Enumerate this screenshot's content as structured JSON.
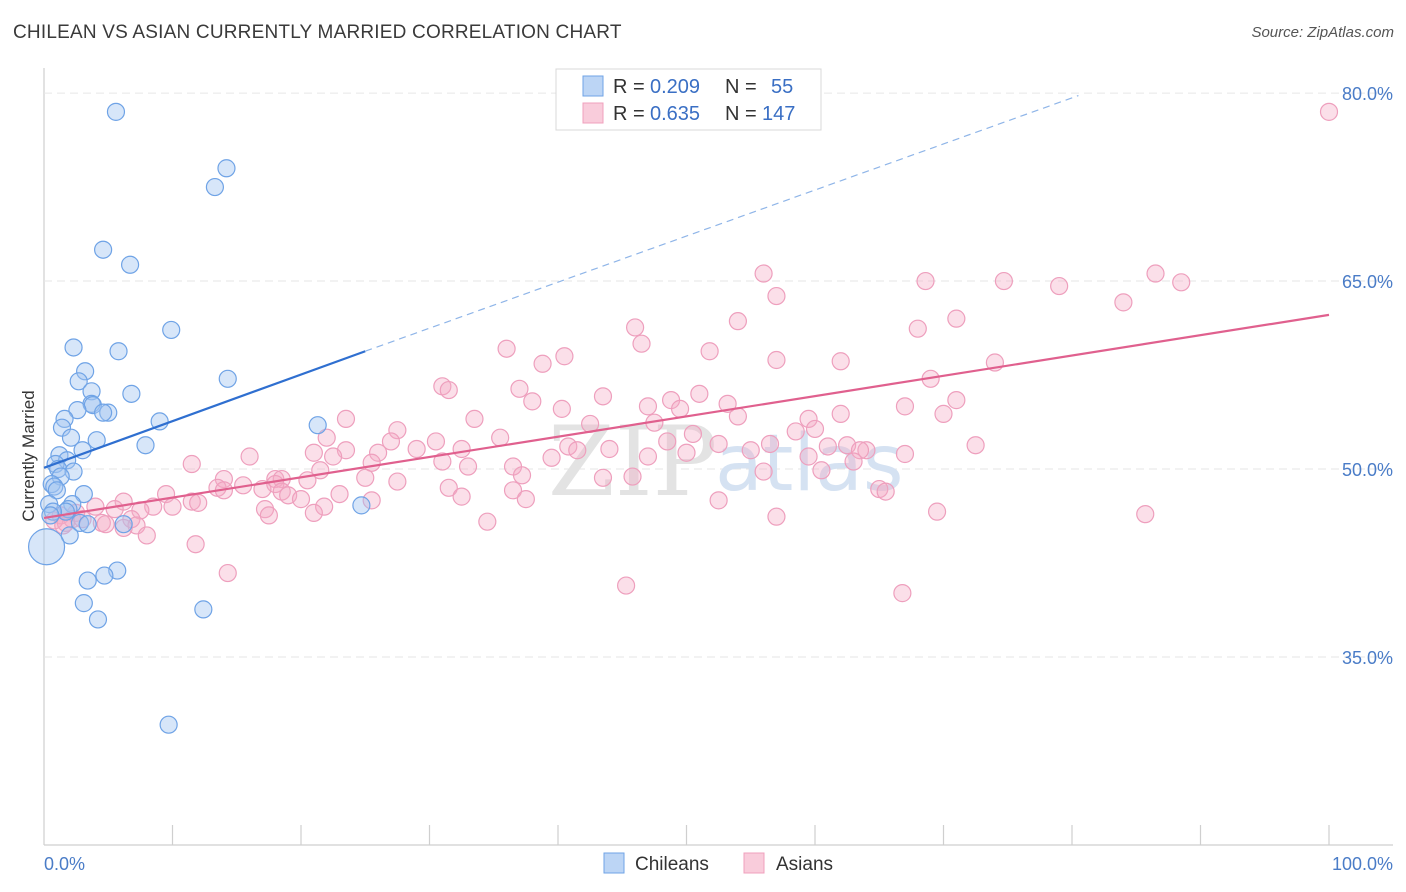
{
  "header": {
    "title": "CHILEAN VS ASIAN CURRENTLY MARRIED CORRELATION CHART",
    "source": "Source: ZipAtlas.com"
  },
  "watermark": {
    "zip": "ZIP",
    "atlas": "atlas"
  },
  "legend": {
    "r_label": "R =",
    "n_label": "N =",
    "rows": [
      {
        "name": "Chileans",
        "r": "0.209",
        "n": "55",
        "color": "#6fa3e6"
      },
      {
        "name": "Asians",
        "r": "0.635",
        "n": "147",
        "color": "#f0a0bc"
      }
    ]
  },
  "bottom_legend": {
    "items": [
      "Chileans",
      "Asians"
    ]
  },
  "chart_data": {
    "type": "scatter",
    "title": "CHILEAN VS ASIAN CURRENTLY MARRIED CORRELATION CHART",
    "xlabel": "",
    "ylabel": "Currently Married",
    "xlim": [
      0,
      100
    ],
    "ylim": [
      20,
      82
    ],
    "x_tick_labels": [
      "0.0%",
      "100.0%"
    ],
    "y_ticks": [
      35,
      50,
      65,
      80
    ],
    "y_tick_labels": [
      "35.0%",
      "50.0%",
      "65.0%",
      "80.0%"
    ],
    "grid": true,
    "colors": {
      "chileans": "#6fa3e6",
      "asians": "#f0a0bc",
      "chileans_line": "#2f6fd0",
      "asians_line": "#e0608e"
    },
    "series": [
      {
        "name": "Chileans",
        "trend": {
          "x0": 0,
          "y0": 50.1,
          "x1": 25,
          "y1": 59.4,
          "dashed_to_x": 80.5,
          "dashed_to_y": 79.8
        },
        "points": [
          [
            5.6,
            78.5
          ],
          [
            14.2,
            74
          ],
          [
            13.3,
            72.5
          ],
          [
            4.6,
            67.5
          ],
          [
            6.7,
            66.3
          ],
          [
            9.9,
            61.1
          ],
          [
            2.3,
            59.7
          ],
          [
            5.8,
            59.4
          ],
          [
            3.2,
            57.8
          ],
          [
            2.7,
            57
          ],
          [
            14.3,
            57.2
          ],
          [
            3.7,
            56.2
          ],
          [
            6.8,
            56
          ],
          [
            3.7,
            55.2
          ],
          [
            3.8,
            55.1
          ],
          [
            2.6,
            54.7
          ],
          [
            5.0,
            54.5
          ],
          [
            4.6,
            54.5
          ],
          [
            1.6,
            54.0
          ],
          [
            9.0,
            53.8
          ],
          [
            21.3,
            53.5
          ],
          [
            1.4,
            53.3
          ],
          [
            2.1,
            52.5
          ],
          [
            4.1,
            52.3
          ],
          [
            7.9,
            51.9
          ],
          [
            3.0,
            51.5
          ],
          [
            1.2,
            51.1
          ],
          [
            1.8,
            50.7
          ],
          [
            0.9,
            50.4
          ],
          [
            1.1,
            50.0
          ],
          [
            2.3,
            49.8
          ],
          [
            1.3,
            49.4
          ],
          [
            0.6,
            48.8
          ],
          [
            0.8,
            48.6
          ],
          [
            1.0,
            48.3
          ],
          [
            3.1,
            48.0
          ],
          [
            0.4,
            47.2
          ],
          [
            2.2,
            47.2
          ],
          [
            1.9,
            46.8
          ],
          [
            1.7,
            46.6
          ],
          [
            0.7,
            46.6
          ],
          [
            0.5,
            46.3
          ],
          [
            2.8,
            45.7
          ],
          [
            3.4,
            45.6
          ],
          [
            6.2,
            45.6
          ],
          [
            2.0,
            44.7
          ],
          [
            24.7,
            47.1
          ],
          [
            0.2,
            43.8
          ],
          [
            5.7,
            41.9
          ],
          [
            4.7,
            41.5
          ],
          [
            3.4,
            41.1
          ],
          [
            12.4,
            38.8
          ],
          [
            4.2,
            38.0
          ],
          [
            3.1,
            39.3
          ],
          [
            9.7,
            29.6
          ]
        ]
      },
      {
        "name": "Asians",
        "trend": {
          "x0": 0,
          "y0": 46.1,
          "x1": 100,
          "y1": 62.3
        },
        "points": [
          [
            100.0,
            78.5
          ],
          [
            56.0,
            65.6
          ],
          [
            86.5,
            65.6
          ],
          [
            74.7,
            65.0
          ],
          [
            68.6,
            65.0
          ],
          [
            88.5,
            64.9
          ],
          [
            79.0,
            64.6
          ],
          [
            57.0,
            63.8
          ],
          [
            84.0,
            63.3
          ],
          [
            46.0,
            61.3
          ],
          [
            71.0,
            62.0
          ],
          [
            54.0,
            61.8
          ],
          [
            68.0,
            61.2
          ],
          [
            46.5,
            60.0
          ],
          [
            36.0,
            59.6
          ],
          [
            51.8,
            59.4
          ],
          [
            57.0,
            58.7
          ],
          [
            62.0,
            58.6
          ],
          [
            38.8,
            58.4
          ],
          [
            40.5,
            59.0
          ],
          [
            74.0,
            58.5
          ],
          [
            69.0,
            57.2
          ],
          [
            31.0,
            56.6
          ],
          [
            37.0,
            56.4
          ],
          [
            31.5,
            56.3
          ],
          [
            51.0,
            56.0
          ],
          [
            43.5,
            55.8
          ],
          [
            53.2,
            55.2
          ],
          [
            71.0,
            55.5
          ],
          [
            38.0,
            55.4
          ],
          [
            48.8,
            55.5
          ],
          [
            67.0,
            55.0
          ],
          [
            47.0,
            55.0
          ],
          [
            49.5,
            54.8
          ],
          [
            40.3,
            54.8
          ],
          [
            62.0,
            54.4
          ],
          [
            70.0,
            54.4
          ],
          [
            54.0,
            54.2
          ],
          [
            33.5,
            54.0
          ],
          [
            23.5,
            54.0
          ],
          [
            59.5,
            54.0
          ],
          [
            47.5,
            53.7
          ],
          [
            42.5,
            53.6
          ],
          [
            60.0,
            53.2
          ],
          [
            58.5,
            53.0
          ],
          [
            27.5,
            53.1
          ],
          [
            50.5,
            52.8
          ],
          [
            35.5,
            52.5
          ],
          [
            22.0,
            52.5
          ],
          [
            48.5,
            52.2
          ],
          [
            30.5,
            52.2
          ],
          [
            52.5,
            52.0
          ],
          [
            56.5,
            52.0
          ],
          [
            72.5,
            51.9
          ],
          [
            27.0,
            52.2
          ],
          [
            61.0,
            51.8
          ],
          [
            40.8,
            51.8
          ],
          [
            44.0,
            51.6
          ],
          [
            64.0,
            51.5
          ],
          [
            62.5,
            51.9
          ],
          [
            55.0,
            51.5
          ],
          [
            32.5,
            51.6
          ],
          [
            29.0,
            51.6
          ],
          [
            23.5,
            51.5
          ],
          [
            41.5,
            51.5
          ],
          [
            63.5,
            51.5
          ],
          [
            67.0,
            51.2
          ],
          [
            50.0,
            51.3
          ],
          [
            21.0,
            51.3
          ],
          [
            26.0,
            51.3
          ],
          [
            16.0,
            51.0
          ],
          [
            22.5,
            51.0
          ],
          [
            59.5,
            51.0
          ],
          [
            47.0,
            51.0
          ],
          [
            39.5,
            50.9
          ],
          [
            31.0,
            50.6
          ],
          [
            63.0,
            50.6
          ],
          [
            25.5,
            50.5
          ],
          [
            33.0,
            50.2
          ],
          [
            36.5,
            50.2
          ],
          [
            11.5,
            50.4
          ],
          [
            21.5,
            49.9
          ],
          [
            60.5,
            49.9
          ],
          [
            56.0,
            49.8
          ],
          [
            37.2,
            49.5
          ],
          [
            45.8,
            49.4
          ],
          [
            25.0,
            49.3
          ],
          [
            43.5,
            49.3
          ],
          [
            14.0,
            49.2
          ],
          [
            18.0,
            49.2
          ],
          [
            18.5,
            49.2
          ],
          [
            20.5,
            49.1
          ],
          [
            27.5,
            49.0
          ],
          [
            18.0,
            48.8
          ],
          [
            15.5,
            48.7
          ],
          [
            31.5,
            48.5
          ],
          [
            13.5,
            48.5
          ],
          [
            17.0,
            48.4
          ],
          [
            36.5,
            48.3
          ],
          [
            65.0,
            48.4
          ],
          [
            14.0,
            48.3
          ],
          [
            18.5,
            48.2
          ],
          [
            65.5,
            48.2
          ],
          [
            9.5,
            48.0
          ],
          [
            23.0,
            48.0
          ],
          [
            19.0,
            47.9
          ],
          [
            32.5,
            47.8
          ],
          [
            20.0,
            47.6
          ],
          [
            37.5,
            47.6
          ],
          [
            25.5,
            47.5
          ],
          [
            11.5,
            47.4
          ],
          [
            6.2,
            47.4
          ],
          [
            52.5,
            47.5
          ],
          [
            12.0,
            47.3
          ],
          [
            21.8,
            47.0
          ],
          [
            8.5,
            47.0
          ],
          [
            10.0,
            47.0
          ],
          [
            4.0,
            47.0
          ],
          [
            5.5,
            46.8
          ],
          [
            17.2,
            46.8
          ],
          [
            7.5,
            46.7
          ],
          [
            21.0,
            46.5
          ],
          [
            2.5,
            46.5
          ],
          [
            17.5,
            46.3
          ],
          [
            69.5,
            46.6
          ],
          [
            57.0,
            46.2
          ],
          [
            85.7,
            46.4
          ],
          [
            1.3,
            46.3
          ],
          [
            2.2,
            46.0
          ],
          [
            0.8,
            45.9
          ],
          [
            6.8,
            46.0
          ],
          [
            3.0,
            46.0
          ],
          [
            1.7,
            45.7
          ],
          [
            4.5,
            45.7
          ],
          [
            1.5,
            45.5
          ],
          [
            4.8,
            45.6
          ],
          [
            7.2,
            45.5
          ],
          [
            6.2,
            45.3
          ],
          [
            34.5,
            45.8
          ],
          [
            8.0,
            44.7
          ],
          [
            11.8,
            44.0
          ],
          [
            14.3,
            41.7
          ],
          [
            45.3,
            40.7
          ],
          [
            66.8,
            40.1
          ]
        ]
      }
    ]
  }
}
